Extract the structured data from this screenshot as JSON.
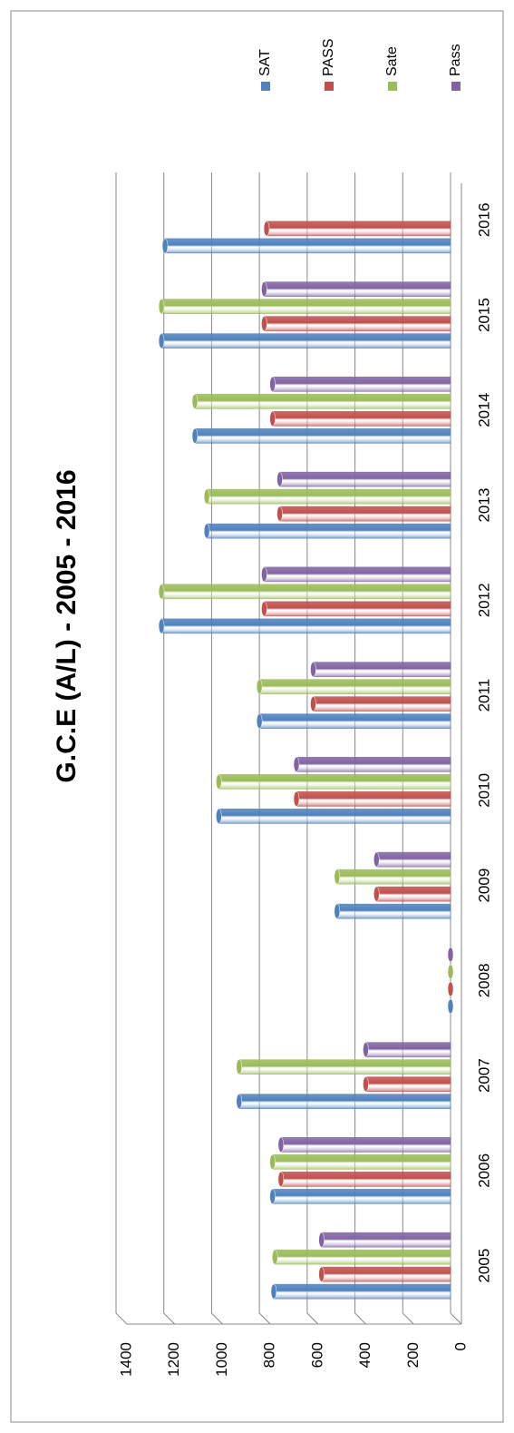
{
  "chart_data": {
    "type": "bar",
    "title": "G.C.E (A/L) - 2005 - 2016",
    "categories": [
      "2005",
      "2006",
      "2007",
      "2008",
      "2009",
      "2010",
      "2011",
      "2012",
      "2013",
      "2014",
      "2015",
      "2016"
    ],
    "series": [
      {
        "name": "SAT",
        "color": "#4f81bd",
        "values": [
          740,
          745,
          885,
          0,
          475,
          970,
          800,
          1210,
          1020,
          1070,
          1210,
          1195
        ]
      },
      {
        "name": "PASS",
        "color": "#c0504d",
        "values": [
          540,
          710,
          355,
          0,
          310,
          645,
          575,
          780,
          715,
          745,
          780,
          770
        ]
      },
      {
        "name": "Sate",
        "color": "#9bbb59",
        "values": [
          735,
          745,
          885,
          0,
          475,
          970,
          800,
          1210,
          1020,
          1070,
          1210,
          null
        ]
      },
      {
        "name": "Pass",
        "color": "#8064a2",
        "values": [
          540,
          710,
          355,
          0,
          310,
          645,
          575,
          780,
          715,
          745,
          780,
          null
        ]
      }
    ],
    "ylim": [
      0,
      1400
    ],
    "yticks": [
      0,
      200,
      400,
      600,
      800,
      1000,
      1200,
      1400
    ],
    "grid": true,
    "legend": "right"
  }
}
